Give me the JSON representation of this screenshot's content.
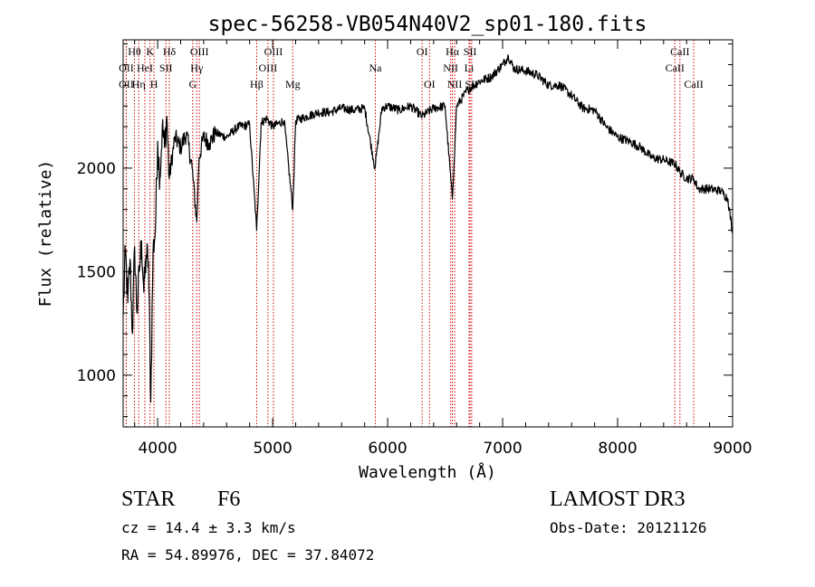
{
  "chart_data": {
    "type": "line",
    "title": "spec-56258-VB054N40V2_sp01-180.fits",
    "xlabel": "Wavelength (Å)",
    "ylabel": "Flux (relative)",
    "xlim": [
      3700,
      9000
    ],
    "ylim": [
      750,
      2620
    ],
    "x_ticks": [
      4000,
      5000,
      6000,
      7000,
      8000,
      9000
    ],
    "y_ticks": [
      1000,
      1500,
      2000
    ],
    "grid": false,
    "line_color": "#000000",
    "marker_color": "#cc0000",
    "spectrum": {
      "x": [
        3700,
        3720,
        3740,
        3760,
        3780,
        3800,
        3820,
        3840,
        3860,
        3880,
        3900,
        3920,
        3940,
        3960,
        3980,
        4000,
        4020,
        4040,
        4060,
        4080,
        4100,
        4150,
        4200,
        4250,
        4300,
        4340,
        4360,
        4400,
        4450,
        4500,
        4600,
        4700,
        4800,
        4861,
        4900,
        4950,
        5000,
        5100,
        5175,
        5200,
        5300,
        5400,
        5500,
        5600,
        5700,
        5800,
        5890,
        5950,
        6000,
        6100,
        6200,
        6300,
        6400,
        6500,
        6563,
        6600,
        6700,
        6800,
        6900,
        7000,
        7050,
        7100,
        7200,
        7300,
        7400,
        7500,
        7600,
        7700,
        7800,
        7900,
        8000,
        8100,
        8200,
        8300,
        8400,
        8500,
        8542,
        8600,
        8662,
        8700,
        8800,
        8900,
        8960,
        9000
      ],
      "y": [
        1290,
        1600,
        1350,
        1560,
        1200,
        1620,
        1300,
        1500,
        1650,
        1400,
        1580,
        1550,
        870,
        1600,
        1700,
        2130,
        1950,
        2200,
        2100,
        2250,
        1950,
        2150,
        2100,
        2170,
        2000,
        1740,
        2050,
        2150,
        2120,
        2170,
        2150,
        2200,
        2210,
        1700,
        2220,
        2240,
        2200,
        2230,
        1800,
        2230,
        2250,
        2270,
        2270,
        2290,
        2280,
        2290,
        2000,
        2290,
        2300,
        2280,
        2300,
        2250,
        2290,
        2300,
        1850,
        2300,
        2380,
        2420,
        2440,
        2500,
        2540,
        2480,
        2470,
        2450,
        2400,
        2400,
        2350,
        2290,
        2280,
        2200,
        2150,
        2130,
        2100,
        2050,
        2040,
        2020,
        1980,
        1950,
        1950,
        1900,
        1900,
        1890,
        1850,
        1680
      ]
    },
    "lines": [
      {
        "label": "Hθ",
        "wl": 3798,
        "row": 0
      },
      {
        "label": "OII",
        "wl": 3727,
        "row": 1
      },
      {
        "label": "OII",
        "wl": 3727,
        "row": 2
      },
      {
        "label": "Hη",
        "wl": 3835,
        "row": 2
      },
      {
        "label": "K",
        "wl": 3934,
        "row": 0
      },
      {
        "label": "HeI",
        "wl": 3889,
        "row": 1
      },
      {
        "label": "SII",
        "wl": 4072,
        "row": 1
      },
      {
        "label": "H",
        "wl": 3968,
        "row": 2
      },
      {
        "label": "Hδ",
        "wl": 4102,
        "row": 0
      },
      {
        "label": "OIII",
        "wl": 4363,
        "row": 0
      },
      {
        "label": "Hγ",
        "wl": 4340,
        "row": 1
      },
      {
        "label": "G",
        "wl": 4305,
        "row": 2
      },
      {
        "label": "Hβ",
        "wl": 4861,
        "row": 2
      },
      {
        "label": "OIII",
        "wl": 5007,
        "row": 0
      },
      {
        "label": "OIII",
        "wl": 4959,
        "row": 1
      },
      {
        "label": "Mg",
        "wl": 5175,
        "row": 2
      },
      {
        "label": "Na",
        "wl": 5893,
        "row": 1
      },
      {
        "label": "OI",
        "wl": 6300,
        "row": 0
      },
      {
        "label": "OI",
        "wl": 6364,
        "row": 2
      },
      {
        "label": "Hα",
        "wl": 6563,
        "row": 0
      },
      {
        "label": "SII",
        "wl": 6717,
        "row": 0
      },
      {
        "label": "NII",
        "wl": 6548,
        "row": 1
      },
      {
        "label": "Li",
        "wl": 6708,
        "row": 1
      },
      {
        "label": "NII",
        "wl": 6583,
        "row": 2
      },
      {
        "label": "SII",
        "wl": 6731,
        "row": 2
      },
      {
        "label": "CaII",
        "wl": 8542,
        "row": 0
      },
      {
        "label": "CaII",
        "wl": 8498,
        "row": 1
      },
      {
        "label": "CaII",
        "wl": 8662,
        "row": 2
      }
    ]
  },
  "info": {
    "object_class": "STAR",
    "subclass": "F6",
    "survey": "LAMOST DR3",
    "redshift": "cz = 14.4 ± 3.3 km/s",
    "obs_date": "Obs-Date: 20121126",
    "coords": "RA =  54.89976, DEC =  37.84072"
  }
}
